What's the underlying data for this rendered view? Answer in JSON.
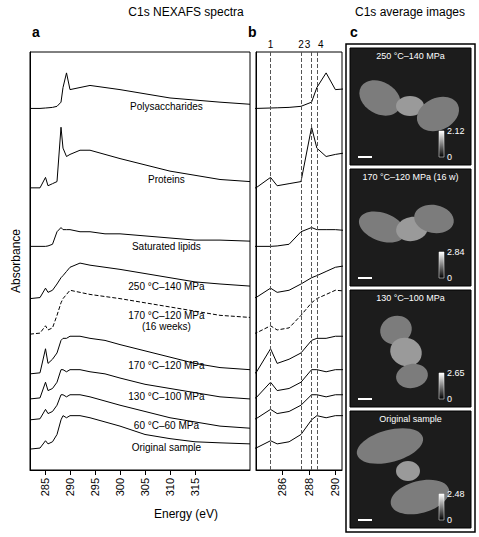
{
  "chart_data": {
    "type": "line",
    "title": "C1s NEXAFS spectra",
    "xlabel": "Energy (eV)",
    "ylabel": "Absorbance",
    "x": [
      282,
      284,
      285.1,
      285.6,
      286.5,
      287.4,
      288.2,
      288.6,
      289.3,
      290,
      292,
      294,
      297,
      300,
      305,
      310,
      315,
      320,
      326
    ],
    "series": [
      {
        "name": "Polysaccharides",
        "color": "#000000",
        "line_style": "solid",
        "values": [
          17.3,
          17.3,
          17.32,
          17.33,
          17.35,
          17.4,
          17.6,
          18.3,
          19.0,
          18.2,
          18.3,
          18.4,
          18.3,
          18.2,
          18.0,
          17.8,
          17.7,
          17.6,
          17.5
        ]
      },
      {
        "name": "Proteins",
        "color": "#000000",
        "line_style": "solid",
        "values": [
          13.5,
          13.5,
          14.0,
          13.6,
          13.7,
          13.8,
          16.4,
          15.4,
          15.0,
          15.1,
          15.3,
          15.3,
          15.1,
          14.9,
          14.6,
          14.3,
          14.1,
          13.9,
          13.8
        ]
      },
      {
        "name": "Saturated lipids",
        "color": "#000000",
        "line_style": "solid",
        "values": [
          10.7,
          10.7,
          10.7,
          10.72,
          10.8,
          11.4,
          11.6,
          11.5,
          11.5,
          11.5,
          11.4,
          11.4,
          11.3,
          11.3,
          11.2,
          11.1,
          11.0,
          11.0,
          10.95
        ]
      },
      {
        "name": "250 °C–140 MPa",
        "color": "#000000",
        "line_style": "solid",
        "values": [
          8.2,
          8.25,
          8.7,
          8.5,
          8.6,
          8.9,
          9.2,
          9.3,
          9.5,
          9.7,
          9.9,
          9.8,
          9.7,
          9.6,
          9.4,
          9.2,
          9.0,
          8.9,
          8.8
        ]
      },
      {
        "name": "170 °C–120 MPa (16 weeks)",
        "color": "#000000",
        "line_style": "dashed",
        "values": [
          6.5,
          6.55,
          6.9,
          6.7,
          6.8,
          7.4,
          8.0,
          8.2,
          8.4,
          8.6,
          8.5,
          8.4,
          8.3,
          8.2,
          8.0,
          7.8,
          7.6,
          7.4,
          7.3
        ]
      },
      {
        "name": "170 °C–120 MPa",
        "color": "#000000",
        "line_style": "solid",
        "values": [
          4.6,
          4.65,
          5.8,
          5.1,
          5.3,
          5.6,
          6.2,
          6.3,
          6.3,
          6.4,
          6.4,
          6.3,
          6.2,
          6.0,
          5.7,
          5.4,
          5.1,
          4.9,
          4.8
        ]
      },
      {
        "name": "130 °C–100 MPa",
        "color": "#000000",
        "line_style": "solid",
        "values": [
          3.4,
          3.45,
          4.2,
          3.8,
          3.9,
          4.2,
          4.8,
          4.8,
          4.7,
          4.8,
          4.8,
          4.7,
          4.6,
          4.4,
          4.1,
          3.9,
          3.7,
          3.5,
          3.4
        ]
      },
      {
        "name": "60 °C–60 MPa",
        "color": "#000000",
        "line_style": "solid",
        "values": [
          2.4,
          2.45,
          2.9,
          2.7,
          2.8,
          3.1,
          3.6,
          3.6,
          3.5,
          3.6,
          3.6,
          3.5,
          3.3,
          3.1,
          2.8,
          2.5,
          2.3,
          2.1,
          2.0
        ]
      },
      {
        "name": "Original sample",
        "color": "#000000",
        "line_style": "solid",
        "values": [
          1.0,
          1.05,
          1.4,
          1.25,
          1.35,
          1.7,
          2.4,
          2.6,
          2.5,
          2.6,
          2.6,
          2.5,
          2.3,
          2.1,
          1.7,
          1.5,
          1.35,
          1.3,
          1.25
        ]
      }
    ],
    "ylim": [
      0,
      20
    ],
    "tick_labels": "x",
    "grid": false,
    "panels": [
      {
        "label": "a",
        "xlim": [
          282,
          326
        ],
        "xticks": [
          285,
          290,
          295,
          300,
          305,
          310,
          315
        ]
      },
      {
        "label": "b",
        "xlim": [
          284,
          290.5
        ],
        "xticks": [
          286,
          288,
          290
        ],
        "markers": [
          {
            "x": 285.1,
            "label": "1"
          },
          {
            "x": 287.4,
            "label": "2"
          },
          {
            "x": 288.2,
            "label": "3"
          },
          {
            "x": 288.6,
            "label": "4"
          }
        ]
      }
    ]
  },
  "images": {
    "label": "c",
    "title": "C1s average images",
    "panels": [
      {
        "title": "250 °C–140 MPa",
        "colorbar_range": [
          0,
          2.12
        ],
        "colorbar_ticks": [
          0,
          2.12
        ]
      },
      {
        "title": "170 °C–120 MPa (16 w)",
        "colorbar_range": [
          0,
          2.84
        ],
        "colorbar_ticks": [
          0,
          2.84
        ]
      },
      {
        "title": "130 °C–100 MPa",
        "colorbar_range": [
          0,
          2.65
        ],
        "colorbar_ticks": [
          0,
          2.65
        ]
      },
      {
        "title": "Original sample",
        "colorbar_range": [
          0,
          2.48
        ],
        "colorbar_ticks": [
          0,
          2.48
        ]
      }
    ]
  }
}
